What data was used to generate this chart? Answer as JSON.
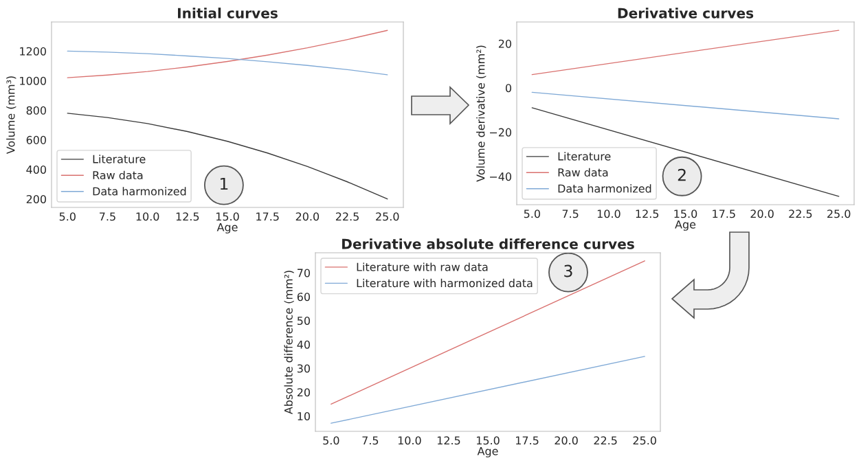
{
  "chart_data": [
    {
      "type": "line",
      "title": "Initial curves",
      "xlabel": "Age",
      "ylabel": "Volume (mm³)",
      "x": [
        5,
        7.5,
        10,
        12.5,
        15,
        17.5,
        20,
        22.5,
        25
      ],
      "series": [
        {
          "name": "Literature",
          "color": "#3a3a3a",
          "values": [
            780,
            751,
            710,
            656,
            590,
            511,
            420,
            316,
            200
          ]
        },
        {
          "name": "Raw data",
          "color": "#d9706e",
          "values": [
            1020,
            1038,
            1062,
            1093,
            1130,
            1173,
            1222,
            1278,
            1340
          ]
        },
        {
          "name": "Data harmonized",
          "color": "#7fa9d6",
          "values": [
            1200,
            1193,
            1183,
            1167,
            1150,
            1128,
            1103,
            1075,
            1040
          ]
        }
      ],
      "xlim": [
        4,
        26
      ],
      "ylim": [
        143,
        1397
      ],
      "xticks": [
        {
          "value": 5,
          "label": "5.0"
        },
        {
          "value": 7.5,
          "label": "7.5"
        },
        {
          "value": 10,
          "label": "10.0"
        },
        {
          "value": 12.5,
          "label": "12.5"
        },
        {
          "value": 15,
          "label": "15.0"
        },
        {
          "value": 17.5,
          "label": "17.5"
        },
        {
          "value": 20,
          "label": "20.0"
        },
        {
          "value": 22.5,
          "label": "22.5"
        },
        {
          "value": 25,
          "label": "25.0"
        }
      ],
      "yticks": [
        200,
        400,
        600,
        800,
        1000,
        1200
      ],
      "legend": "bottom left",
      "grid": false,
      "annotations": [
        "1"
      ]
    },
    {
      "type": "line",
      "title": "Derivative curves",
      "xlabel": "Age",
      "ylabel": "Volume derivative (mm²)",
      "x": [
        5,
        25
      ],
      "series": [
        {
          "name": "Literature",
          "color": "#3a3a3a",
          "values": [
            -9,
            -49
          ]
        },
        {
          "name": "Raw data",
          "color": "#d9706e",
          "values": [
            6,
            26
          ]
        },
        {
          "name": "Data harmonized",
          "color": "#7fa9d6",
          "values": [
            -2,
            -14
          ]
        }
      ],
      "xlim": [
        4,
        26
      ],
      "ylim": [
        -52.75,
        29.75
      ],
      "xticks": [
        {
          "value": 5,
          "label": "5.0"
        },
        {
          "value": 7.5,
          "label": "7.5"
        },
        {
          "value": 10,
          "label": "10.0"
        },
        {
          "value": 12.5,
          "label": "12.5"
        },
        {
          "value": 15,
          "label": "15.0"
        },
        {
          "value": 17.5,
          "label": "17.5"
        },
        {
          "value": 20,
          "label": "20.0"
        },
        {
          "value": 22.5,
          "label": "22.5"
        },
        {
          "value": 25,
          "label": "25.0"
        }
      ],
      "yticks": [
        {
          "value": -40,
          "label": "−40"
        },
        {
          "value": -20,
          "label": "−20"
        },
        0,
        20
      ],
      "legend": "bottom left",
      "grid": false,
      "annotations": [
        "2"
      ]
    },
    {
      "type": "line",
      "title": "Derivative absolute difference curves",
      "xlabel": "Age",
      "ylabel": "Absolute difference (mm²)",
      "x": [
        5,
        25
      ],
      "series": [
        {
          "name": "Literature with raw data",
          "color": "#d9706e",
          "values": [
            15,
            75
          ]
        },
        {
          "name": "Literature with harmonized data",
          "color": "#7fa9d6",
          "values": [
            7,
            35
          ]
        }
      ],
      "xlim": [
        4,
        26
      ],
      "ylim": [
        3.6,
        78.4
      ],
      "xticks": [
        {
          "value": 5,
          "label": "5.0"
        },
        {
          "value": 7.5,
          "label": "7.5"
        },
        {
          "value": 10,
          "label": "10.0"
        },
        {
          "value": 12.5,
          "label": "12.5"
        },
        {
          "value": 15,
          "label": "15.0"
        },
        {
          "value": 17.5,
          "label": "17.5"
        },
        {
          "value": 20,
          "label": "20.0"
        },
        {
          "value": 22.5,
          "label": "22.5"
        },
        {
          "value": 25,
          "label": "25.0"
        }
      ],
      "yticks": [
        10,
        20,
        30,
        40,
        50,
        60,
        70
      ],
      "legend": "top left",
      "grid": false,
      "annotations": [
        "3"
      ]
    }
  ]
}
